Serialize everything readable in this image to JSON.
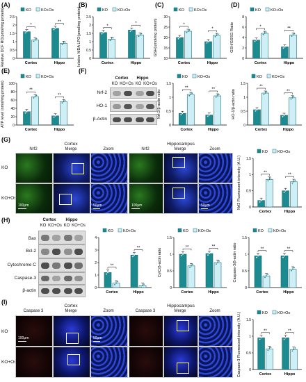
{
  "panels": {
    "A": {
      "label": "(A)",
      "ylabel": "Relative DCF\nRO(pmol/mg protein)"
    },
    "B": {
      "label": "(B)",
      "ylabel": "Relative MDA\nLPO(pmol/mg protein)"
    },
    "C": {
      "label": "(C)",
      "ylabel": "GSH(umol/mg protein)"
    },
    "D": {
      "label": "(D)",
      "ylabel": "GSH/GSSG Ratio"
    },
    "E": {
      "label": "(E)",
      "ylabel": "ATP level (nmol/mg protein)"
    },
    "F": {
      "label": "(F)"
    },
    "G": {
      "label": "(G)"
    },
    "H": {
      "label": "(H)"
    },
    "I": {
      "label": "(I)"
    }
  },
  "legend": {
    "ko": "KO",
    "koos": "KO+Os"
  },
  "colors": {
    "ko": "#1c8a8f",
    "koos": "#cfeff6",
    "edge": "#1a6a7a"
  },
  "blot_F": {
    "groups": [
      {
        "label": "Cortex"
      },
      {
        "label": "Hippo"
      }
    ],
    "lanes": [
      "KO",
      "KO+Os",
      "KO",
      "KO+Os"
    ],
    "rows": [
      "Nrf-2",
      "HO-1",
      "β-Actin"
    ]
  },
  "blot_H": {
    "groups": [
      {
        "label": "Cortex"
      },
      {
        "label": "Hippo"
      }
    ],
    "lanes": [
      "KO",
      "KO+Os",
      "KO",
      "KO+Os"
    ],
    "rows": [
      "Bax",
      "Bcl-2",
      "Cytochrome C",
      "Caspase-3",
      "β-actin"
    ]
  },
  "micro_G": {
    "section_left": "Cortex",
    "section_right": "Hippocampus",
    "cols": [
      "Nrf2",
      "Merge",
      "Zoom",
      "Nrf2",
      "Merge",
      "Zoom"
    ],
    "rows": [
      "KO",
      "KO+Os"
    ],
    "scale_100": "100μm",
    "scale_50": "50μm"
  },
  "micro_I": {
    "section_left": "Cortex",
    "section_right": "Hippocampus",
    "cols": [
      "Caspase 3",
      "Merge",
      "Zoom",
      "Caspase 3",
      "Merge",
      "Zoom"
    ],
    "rows": [
      "KO",
      "KO+Os"
    ],
    "scale_100": "100μm",
    "scale_50": "50μm"
  },
  "chart_data": [
    {
      "panel": "A",
      "type": "bar",
      "categories": [
        "Cortex",
        "Hippo"
      ],
      "ylabel": "Relative DCF RO(pmol/mg protein)",
      "ylim": [
        0,
        2.5
      ],
      "yticks": [
        0,
        0.5,
        1.0,
        1.5,
        2.0,
        2.5
      ],
      "series": [
        {
          "name": "KO",
          "values": [
            1.6,
            1.8
          ]
        },
        {
          "name": "KO+Os",
          "values": [
            1.1,
            0.9
          ]
        }
      ],
      "sig": [
        "*",
        "**"
      ]
    },
    {
      "panel": "B",
      "type": "bar",
      "categories": [
        "Cortex",
        "Hippo"
      ],
      "ylabel": "Relative MDA LPO(pmol/mg protein)",
      "ylim": [
        0,
        2.5
      ],
      "yticks": [
        0,
        0.5,
        1.0,
        1.5,
        2.0,
        2.5
      ],
      "series": [
        {
          "name": "KO",
          "values": [
            1.55,
            1.7
          ]
        },
        {
          "name": "KO+Os",
          "values": [
            1.15,
            1.4
          ]
        }
      ],
      "sig": [
        "*",
        "*"
      ]
    },
    {
      "panel": "C",
      "type": "bar",
      "categories": [
        "Cortex",
        "Hippo"
      ],
      "ylabel": "GSH(umol/mg protein)",
      "ylim": [
        10,
        30
      ],
      "yticks": [
        10,
        15,
        20,
        25,
        30
      ],
      "series": [
        {
          "name": "KO",
          "values": [
            20,
            18
          ]
        },
        {
          "name": "KO+Os",
          "values": [
            23,
            21
          ]
        }
      ],
      "sig": [
        "*",
        "*"
      ]
    },
    {
      "panel": "D",
      "type": "bar",
      "categories": [
        "Cortex",
        "Hippo"
      ],
      "ylabel": "GSH/GSSG Ratio",
      "ylim": [
        0,
        8
      ],
      "yticks": [
        0,
        2,
        4,
        6,
        8
      ],
      "series": [
        {
          "name": "KO",
          "values": [
            3.5,
            2.2
          ]
        },
        {
          "name": "KO+Os",
          "values": [
            4.8,
            4.5
          ]
        }
      ],
      "sig": [
        "*",
        "**"
      ]
    },
    {
      "panel": "E",
      "type": "bar",
      "categories": [
        "Cortex",
        "Hippo"
      ],
      "ylabel": "ATP level (nmol/mg protein)",
      "ylim": [
        0,
        100
      ],
      "yticks": [
        0,
        20,
        40,
        60,
        80,
        100
      ],
      "series": [
        {
          "name": "KO",
          "values": [
            32,
            22
          ]
        },
        {
          "name": "KO+Os",
          "values": [
            68,
            56
          ]
        }
      ],
      "sig": [
        "**",
        "**"
      ]
    },
    {
      "panel": "F1",
      "type": "bar",
      "categories": [
        "Cortex",
        "Hippo"
      ],
      "ylabel": "Nrf-2/β-actin ratio",
      "ylim": [
        0,
        1.5
      ],
      "yticks": [
        0,
        0.5,
        1.0,
        1.5
      ],
      "series": [
        {
          "name": "KO",
          "values": [
            0.42,
            0.36
          ]
        },
        {
          "name": "KO+Os",
          "values": [
            1.1,
            1.05
          ]
        }
      ],
      "sig": [
        "**",
        "**"
      ]
    },
    {
      "panel": "F2",
      "type": "bar",
      "categories": [
        "Cortex",
        "Hippo"
      ],
      "ylabel": "HO-1/β-actin ratio",
      "ylim": [
        0,
        1.5
      ],
      "yticks": [
        0,
        0.5,
        1.0,
        1.5
      ],
      "series": [
        {
          "name": "KO",
          "values": [
            0.55,
            0.35
          ]
        },
        {
          "name": "KO+Os",
          "values": [
            1.15,
            0.98
          ]
        }
      ],
      "sig": [
        "**",
        "**"
      ]
    },
    {
      "panel": "G",
      "type": "bar",
      "categories": [
        "Cortex",
        "Hippo"
      ],
      "ylabel": "Nrf2 Fluorescent intensity (A.U.)",
      "ylim": [
        0,
        1.5
      ],
      "yticks": [
        0,
        0.5,
        1.0,
        1.5
      ],
      "series": [
        {
          "name": "KO",
          "values": [
            0.2,
            0.5
          ]
        },
        {
          "name": "KO+Os",
          "values": [
            0.85,
            0.78
          ]
        }
      ],
      "sig": [
        "**",
        "**"
      ]
    },
    {
      "panel": "H1",
      "type": "bar",
      "categories": [
        "Cortex",
        "Hippo"
      ],
      "ylabel": "Bax/Bcl-2 ratio",
      "ylim": [
        0,
        4
      ],
      "yticks": [
        0,
        1,
        2,
        3,
        4
      ],
      "series": [
        {
          "name": "KO",
          "values": [
            1.2,
            2.6
          ]
        },
        {
          "name": "KO+Os",
          "values": [
            0.35,
            0.15
          ]
        }
      ],
      "sig": [
        "**",
        "**"
      ]
    },
    {
      "panel": "H2",
      "type": "bar",
      "categories": [
        "Cortex",
        "Hippo"
      ],
      "ylabel": "CytC/β-actin ratio",
      "ylim": [
        0,
        1.5
      ],
      "yticks": [
        0,
        0.5,
        1.0,
        1.5
      ],
      "series": [
        {
          "name": "KO",
          "values": [
            1.0,
            1.02
          ]
        },
        {
          "name": "KO+Os",
          "values": [
            0.65,
            0.75
          ]
        }
      ],
      "sig": [
        "**",
        "**"
      ]
    },
    {
      "panel": "H3",
      "type": "bar",
      "categories": [
        "Cortex",
        "Hippo"
      ],
      "ylabel": "Caspase-3/β-actin ratio",
      "ylim": [
        0,
        1.5
      ],
      "yticks": [
        0,
        0.5,
        1.0,
        1.5
      ],
      "series": [
        {
          "name": "KO",
          "values": [
            0.95,
            0.95
          ]
        },
        {
          "name": "KO+Os",
          "values": [
            0.35,
            0.55
          ]
        }
      ],
      "sig": [
        "**",
        "**"
      ]
    },
    {
      "panel": "I",
      "type": "bar",
      "categories": [
        "Cortex",
        "Hippo"
      ],
      "ylabel": "Caspase-3 Fluorescent intensity (A.U.)",
      "ylim": [
        0,
        1.5
      ],
      "yticks": [
        0,
        0.5,
        1.0,
        1.5
      ],
      "series": [
        {
          "name": "KO",
          "values": [
            0.95,
            0.95
          ]
        },
        {
          "name": "KO+Os",
          "values": [
            0.62,
            0.6
          ]
        }
      ],
      "sig": [
        "**",
        "**"
      ]
    }
  ]
}
